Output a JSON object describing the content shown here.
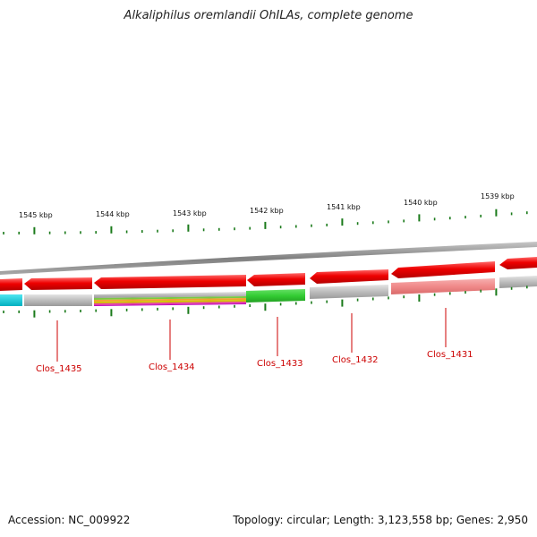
{
  "title": "Alkaliphilus oremlandii OhILAs, complete genome",
  "footer": {
    "accession": "Accession: NC_009922",
    "stats": "Topology: circular; Length: 3,123,558 bp; Genes: 2,950"
  },
  "colors": {
    "backbone": "#8a8a8a",
    "gene_red": "#ee0000",
    "gene_grey": "#b8b8b8",
    "gene_pink": "#f08a8a",
    "gene_green": "#33cc33",
    "gene_cyan": "#00c8d6",
    "tick": "#1a7a1a",
    "label": "#cc0000"
  },
  "scale_labels": [
    "1545 kbp",
    "1544 kbp",
    "1543 kbp",
    "1542 kbp",
    "1541 kbp",
    "1540 kbp",
    "1539 kbp"
  ],
  "gene_labels": [
    "Clos_1435",
    "Clos_1434",
    "Clos_1433",
    "Clos_1432",
    "Clos_1431"
  ]
}
